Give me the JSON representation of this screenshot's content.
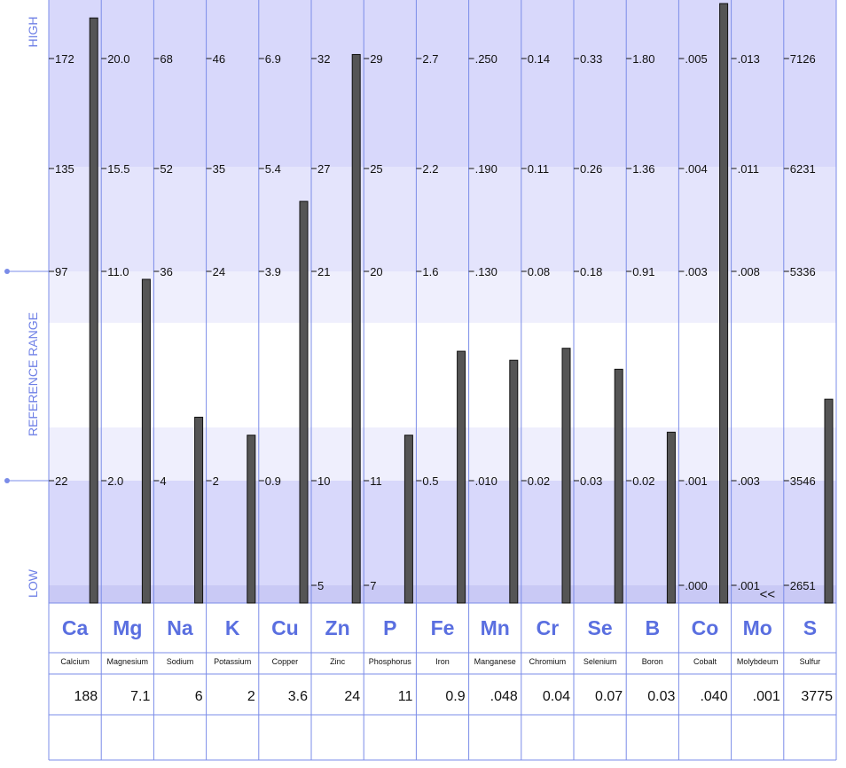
{
  "colors": {
    "band_dark": "#d8d8fb",
    "band_mid": "#e4e4fc",
    "band_light": "#efeffd",
    "row_strip": "#c9c9f5",
    "grid_line": "#7b8ce8",
    "bar_fill": "#555555",
    "bar_stroke": "#111111",
    "accent_text": "#5a6fe0",
    "side_label": "#6f80e6"
  },
  "chart_data": {
    "type": "bar",
    "side_labels": {
      "top": "HIGH",
      "middle": "REFERENCE RANGE",
      "bottom": "LOW"
    },
    "categories": [
      "Ca",
      "Mg",
      "Na",
      "K",
      "Cu",
      "Zn",
      "P",
      "Fe",
      "Mn",
      "Cr",
      "Se",
      "B",
      "Co",
      "Mo",
      "S"
    ],
    "names": [
      "Calcium",
      "Magnesium",
      "Sodium",
      "Potassium",
      "Copper",
      "Zinc",
      "Phosphorus",
      "Iron",
      "Manganese",
      "Chromium",
      "Selenium",
      "Boron",
      "Cobalt",
      "Molybdeum",
      "Sulfur"
    ],
    "values": [
      "188",
      "7.1",
      "6",
      "2",
      "3.6",
      "24",
      "11",
      "0.9",
      ".048",
      "0.04",
      "0.07",
      "0.03",
      ".040",
      ".001",
      "3775"
    ],
    "tick_labels": [
      [
        "172",
        "135",
        "97",
        "22"
      ],
      [
        "20.0",
        "15.5",
        "11.0",
        "2.0"
      ],
      [
        "68",
        "52",
        "36",
        "4"
      ],
      [
        "46",
        "35",
        "24",
        "2"
      ],
      [
        "6.9",
        "5.4",
        "3.9",
        "0.9"
      ],
      [
        "32",
        "27",
        "21",
        "10",
        "5"
      ],
      [
        "29",
        "25",
        "20",
        "11",
        "7"
      ],
      [
        "2.7",
        "2.2",
        "1.6",
        "0.5"
      ],
      [
        ".250",
        ".190",
        ".130",
        ".010"
      ],
      [
        "0.14",
        "0.11",
        "0.08",
        "0.02"
      ],
      [
        "0.33",
        "0.26",
        "0.18",
        "0.03"
      ],
      [
        "1.80",
        "1.36",
        "0.91",
        "0.02"
      ],
      [
        ".005",
        ".004",
        ".003",
        ".001",
        ".000"
      ],
      [
        ".013",
        ".011",
        ".008",
        ".003",
        ".001"
      ],
      [
        "7126",
        "6231",
        "5336",
        "3546",
        "2651"
      ]
    ],
    "bar_levels": [
      0.976,
      0.54,
      0.31,
      0.28,
      0.67,
      0.915,
      0.28,
      0.42,
      0.405,
      0.425,
      0.39,
      0.285,
      1.0,
      0.0,
      0.34
    ],
    "annotations": [
      {
        "column": "Mo",
        "text": "<<"
      }
    ]
  }
}
